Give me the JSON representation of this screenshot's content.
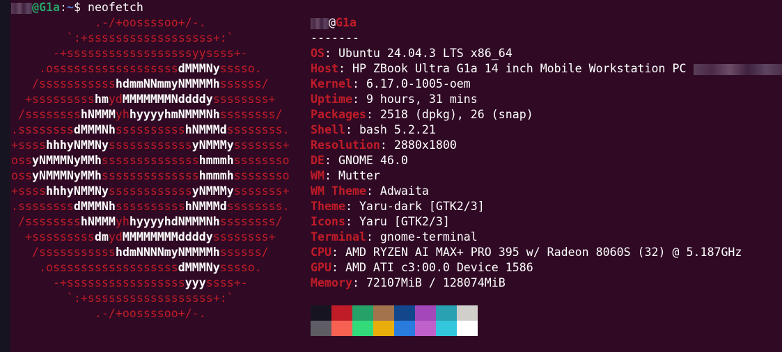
{
  "prompt": {
    "user_redacted": true,
    "host": "@G1a",
    "sep": ":",
    "path": "~",
    "symbol": "$ ",
    "command": "neofetch"
  },
  "art": [
    [
      [
        "r",
        "            .-/+oossssoo+/-."
      ]
    ],
    [
      [
        "r",
        "        `:+ssssssssssssssssss+:`"
      ]
    ],
    [
      [
        "r",
        "      -+ssssssssssssssssssyyssss+-"
      ]
    ],
    [
      [
        "r",
        "    .ossssssssssssssssss"
      ],
      [
        "w",
        "dMMMNy"
      ],
      [
        "r",
        "sssso."
      ]
    ],
    [
      [
        "r",
        "   /sssssssssss"
      ],
      [
        "w",
        "hdmmNNmmyNMMMMh"
      ],
      [
        "r",
        "ssssss/"
      ]
    ],
    [
      [
        "r",
        "  +sssssssss"
      ],
      [
        "w",
        "hm"
      ],
      [
        "r",
        "yd"
      ],
      [
        "w",
        "MMMMMMMNddddy"
      ],
      [
        "r",
        "ssssssss+"
      ]
    ],
    [
      [
        "r",
        " /ssssssss"
      ],
      [
        "w",
        "hNMMM"
      ],
      [
        "r",
        "yh"
      ],
      [
        "w",
        "hyyyyhmNMMMNh"
      ],
      [
        "r",
        "ssssssss/"
      ]
    ],
    [
      [
        "r",
        ".ssssssss"
      ],
      [
        "w",
        "dMMMNh"
      ],
      [
        "r",
        "ssssssssss"
      ],
      [
        "w",
        "hNMMMd"
      ],
      [
        "r",
        "ssssssss."
      ]
    ],
    [
      [
        "r",
        "+ssss"
      ],
      [
        "w",
        "hhhyNMMNy"
      ],
      [
        "r",
        "ssssssssssss"
      ],
      [
        "w",
        "yNMMMy"
      ],
      [
        "r",
        "sssssss+"
      ]
    ],
    [
      [
        "r",
        "oss"
      ],
      [
        "w",
        "yNMMMNyMMh"
      ],
      [
        "r",
        "ssssssssssssss"
      ],
      [
        "w",
        "hmmmh"
      ],
      [
        "r",
        "ssssssso"
      ]
    ],
    [
      [
        "r",
        "oss"
      ],
      [
        "w",
        "yNMMMNyMMh"
      ],
      [
        "r",
        "ssssssssssssss"
      ],
      [
        "w",
        "hmmmh"
      ],
      [
        "r",
        "ssssssso"
      ]
    ],
    [
      [
        "r",
        "+ssss"
      ],
      [
        "w",
        "hhhyNMMNy"
      ],
      [
        "r",
        "ssssssssssss"
      ],
      [
        "w",
        "yNMMMy"
      ],
      [
        "r",
        "sssssss+"
      ]
    ],
    [
      [
        "r",
        ".ssssssss"
      ],
      [
        "w",
        "dMMMNh"
      ],
      [
        "r",
        "ssssssssss"
      ],
      [
        "w",
        "hNMMMd"
      ],
      [
        "r",
        "ssssssss."
      ]
    ],
    [
      [
        "r",
        " /ssssssss"
      ],
      [
        "w",
        "hNMMM"
      ],
      [
        "r",
        "yh"
      ],
      [
        "w",
        "hyyyyhdNMMMNh"
      ],
      [
        "r",
        "ssssssss/"
      ]
    ],
    [
      [
        "r",
        "  +sssssssss"
      ],
      [
        "w",
        "dm"
      ],
      [
        "r",
        "yd"
      ],
      [
        "w",
        "MMMMMMMMddddy"
      ],
      [
        "r",
        "ssssssss+"
      ]
    ],
    [
      [
        "r",
        "   /sssssssssss"
      ],
      [
        "w",
        "hdmNNNNmyNMMMMh"
      ],
      [
        "r",
        "ssssss/"
      ]
    ],
    [
      [
        "r",
        "    .ossssssssssssssssss"
      ],
      [
        "w",
        "dMMMNy"
      ],
      [
        "r",
        "sssso."
      ]
    ],
    [
      [
        "r",
        "      -+sssssssssssssssss"
      ],
      [
        "w",
        "yyy"
      ],
      [
        "r",
        "ssss+-"
      ]
    ],
    [
      [
        "r",
        "        `:+ssssssssssssssssss+:`"
      ]
    ],
    [
      [
        "r",
        "            .-/+oossssoo+/-."
      ]
    ]
  ],
  "info": {
    "title_host": "@G1a",
    "underline": "-------",
    "rows": [
      {
        "key": "OS",
        "value": "Ubuntu 24.04.3 LTS x86_64"
      },
      {
        "key": "Host",
        "value": "HP ZBook Ultra G1a 14 inch Mobile Workstation PC"
      },
      {
        "key": "Kernel",
        "value": "6.17.0-1005-oem"
      },
      {
        "key": "Uptime",
        "value": "9 hours, 31 mins"
      },
      {
        "key": "Packages",
        "value": "2518 (dpkg), 26 (snap)"
      },
      {
        "key": "Shell",
        "value": "bash 5.2.21"
      },
      {
        "key": "Resolution",
        "value": "2880x1800"
      },
      {
        "key": "DE",
        "value": "GNOME 46.0"
      },
      {
        "key": "WM",
        "value": "Mutter"
      },
      {
        "key": "WM Theme",
        "value": "Adwaita"
      },
      {
        "key": "Theme",
        "value": "Yaru-dark [GTK2/3]"
      },
      {
        "key": "Icons",
        "value": "Yaru [GTK2/3]"
      },
      {
        "key": "Terminal",
        "value": "gnome-terminal"
      },
      {
        "key": "CPU",
        "value": "AMD RYZEN AI MAX+ PRO 395 w/ Radeon 8060S (32) @ 5.187GHz"
      },
      {
        "key": "GPU",
        "value": "AMD ATI c3:00.0 Device 1586"
      },
      {
        "key": "Memory",
        "value": "72107MiB / 128074MiB"
      }
    ]
  },
  "colors": {
    "background": "#300a24",
    "accent": "#c01c28",
    "palette": [
      "#171421",
      "#c01c28",
      "#26a269",
      "#a2734c",
      "#12488b",
      "#a347ba",
      "#2aa1b3",
      "#d0cfcc",
      "#5e5c64",
      "#f66151",
      "#33da7a",
      "#e9ad0c",
      "#2a7bde",
      "#c061cb",
      "#33c7de",
      "#ffffff"
    ]
  }
}
